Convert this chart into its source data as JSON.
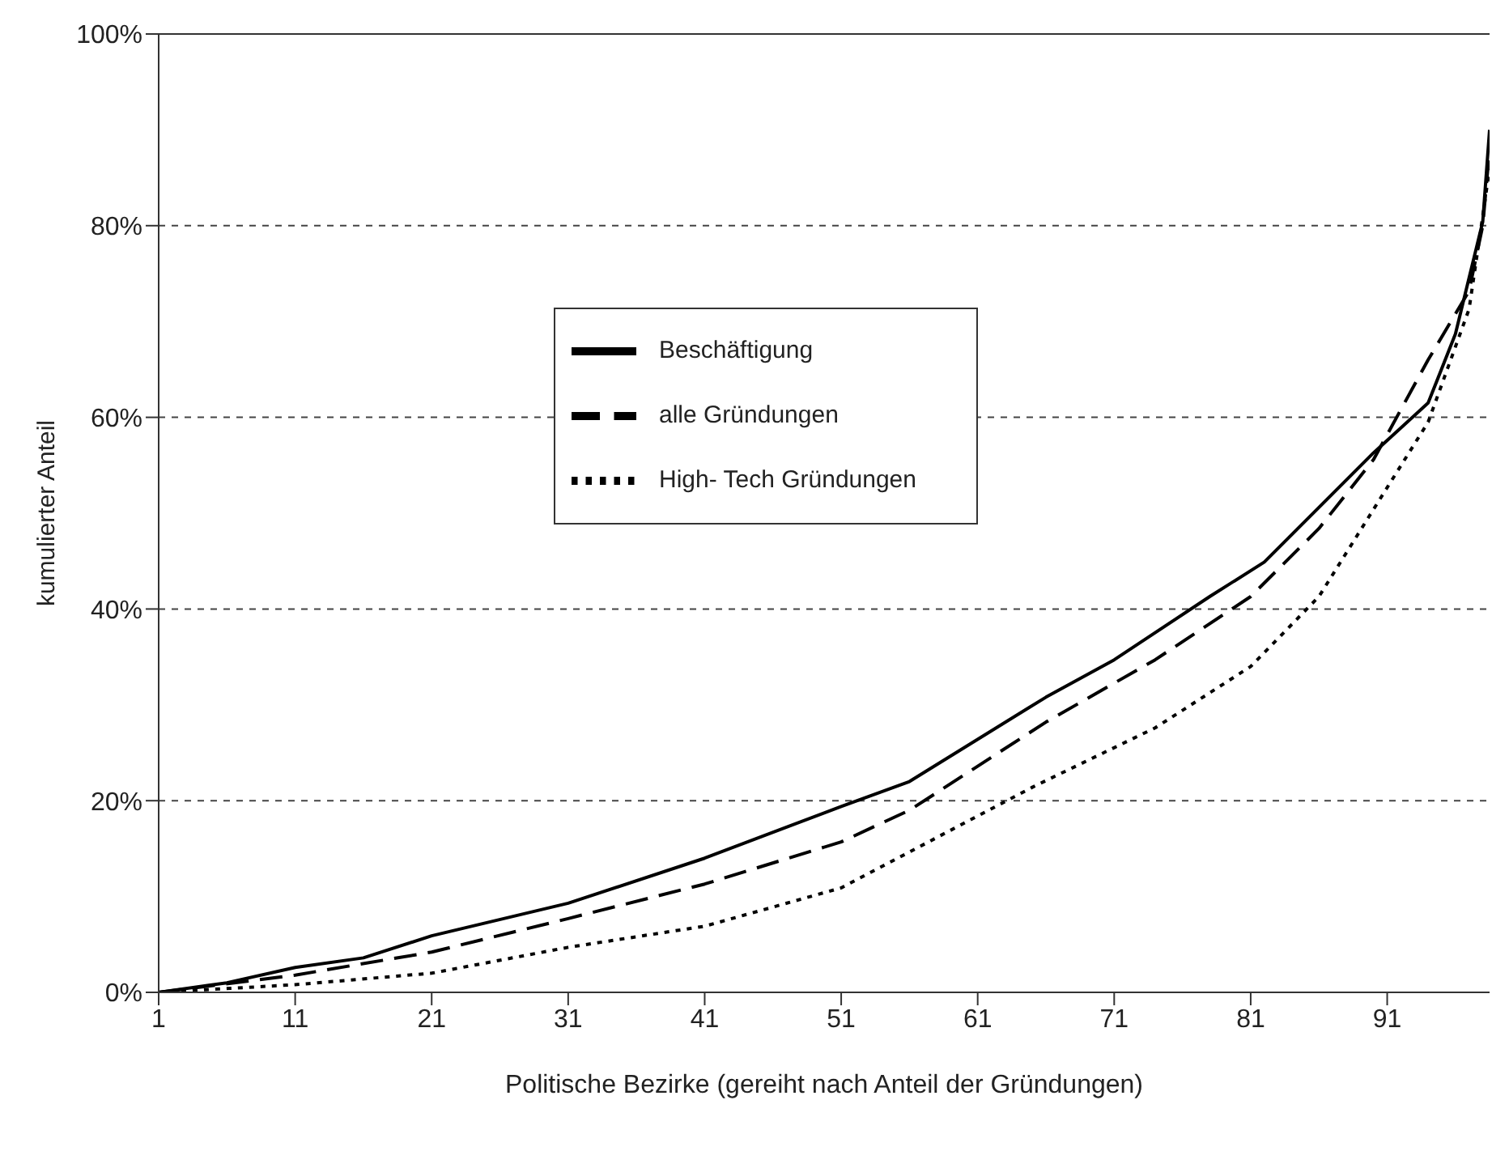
{
  "chart_data": {
    "type": "line",
    "xlabel": "Politische Bezirke (gereiht nach Anteil der Gründungen)",
    "ylabel": "kumulierter Anteil",
    "xlim": [
      1,
      98.5
    ],
    "xticks": [
      1,
      11,
      21,
      31,
      41,
      51,
      61,
      71,
      81,
      91
    ],
    "ylim": [
      0,
      100
    ],
    "yticks": [
      {
        "value": 0,
        "label": "0%"
      },
      {
        "value": 20,
        "label": "20%"
      },
      {
        "value": 40,
        "label": "40%"
      },
      {
        "value": 60,
        "label": "60%"
      },
      {
        "value": 80,
        "label": "80%"
      },
      {
        "value": 100,
        "label": "100%"
      }
    ],
    "grid": "y",
    "legend": "center",
    "marker": "none",
    "series": [
      {
        "name": "Beschäftigung",
        "color": "#000000",
        "line_style": "solid",
        "x": [
          1,
          6,
          11,
          16,
          21,
          31,
          41,
          51,
          56,
          66,
          71,
          78,
          82,
          90,
          94,
          96,
          98,
          98.5
        ],
        "values": [
          0,
          1,
          2.6,
          3.6,
          5.9,
          9.3,
          14,
          19.4,
          22,
          30.8,
          34.7,
          41.3,
          44.9,
          56.3,
          61.5,
          68.7,
          80.4,
          90
        ]
      },
      {
        "name": "alle Gründungen",
        "color": "#000000",
        "line_style": "dashed",
        "x": [
          1,
          11,
          21,
          31,
          41,
          51,
          56,
          66,
          74,
          81,
          86,
          90,
          94,
          97,
          98,
          98.5
        ],
        "values": [
          0,
          1.8,
          4.2,
          7.7,
          11.3,
          15.7,
          19,
          28.2,
          34.7,
          41.3,
          48.4,
          55.6,
          66,
          73.2,
          80,
          88
        ]
      },
      {
        "name": "High- Tech Gründungen",
        "color": "#000000",
        "line_style": "dotted",
        "x": [
          1,
          11,
          21,
          31,
          41,
          51,
          65,
          74,
          81,
          86,
          90,
          94,
          97,
          98,
          98.5
        ],
        "values": [
          0,
          0.8,
          2,
          4.7,
          6.9,
          10.9,
          21.4,
          27.6,
          34,
          41.3,
          50.4,
          59.5,
          71.3,
          81,
          86
        ]
      }
    ]
  }
}
